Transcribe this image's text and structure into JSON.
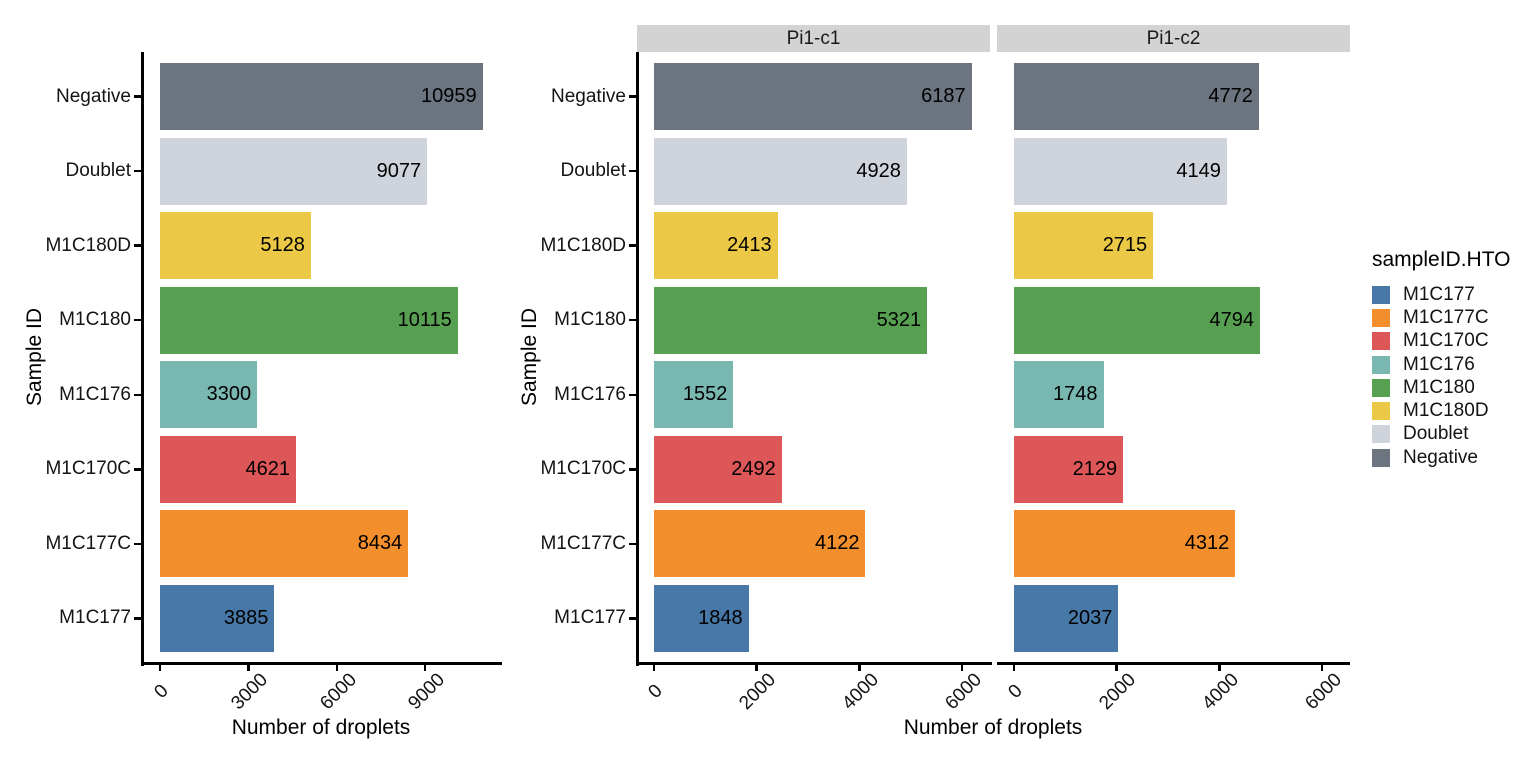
{
  "chart_data": {
    "type": "bar",
    "orientation": "horizontal",
    "xlabel": "Number of droplets",
    "ylabel": "Sample ID",
    "categories_top_to_bottom": [
      "Negative",
      "Doublet",
      "M1C180D",
      "M1C180",
      "M1C176",
      "M1C170C",
      "M1C177C",
      "M1C177"
    ],
    "bar_colors": {
      "Negative": "#6C757F",
      "Doublet": "#CFD4DC",
      "M1C180D": "#EBC845",
      "M1C180": "#57A052",
      "M1C176": "#79B7B1",
      "M1C170C": "#DD5658",
      "M1C177C": "#F28E2B",
      "M1C177": "#4878A7"
    },
    "panels": [
      {
        "facet_label": "",
        "values": [
          10959,
          9077,
          5128,
          10115,
          3300,
          4621,
          8434,
          3885
        ],
        "x_ticks": [
          0,
          3000,
          6000,
          9000
        ],
        "xlim": [
          -610,
          11550
        ]
      },
      {
        "facet_label": "Pi1-c1",
        "values": [
          6187,
          4928,
          2413,
          5321,
          1552,
          2492,
          4122,
          1848
        ],
        "x_ticks": [
          0,
          2000,
          4000,
          6000
        ],
        "xlim": [
          -325,
          6545
        ]
      },
      {
        "facet_label": "Pi1-c2",
        "values": [
          4772,
          4149,
          2715,
          4794,
          1748,
          2129,
          4312,
          2037
        ],
        "x_ticks": [
          0,
          2000,
          4000,
          6000
        ],
        "xlim": [
          -325,
          6545
        ]
      }
    ],
    "legend": {
      "title": "sampleID.HTO",
      "position": "right",
      "items": [
        {
          "label": "M1C177",
          "color": "#4878A7"
        },
        {
          "label": "M1C177C",
          "color": "#F28E2B"
        },
        {
          "label": "M1C170C",
          "color": "#DD5658"
        },
        {
          "label": "M1C176",
          "color": "#79B7B1"
        },
        {
          "label": "M1C180",
          "color": "#57A052"
        },
        {
          "label": "M1C180D",
          "color": "#EBC845"
        },
        {
          "label": "Doublet",
          "color": "#CFD4DC"
        },
        {
          "label": "Negative",
          "color": "#6C757F"
        }
      ]
    },
    "styles": {
      "strip_background": "#D3D3D3",
      "axis_color": "#000000",
      "value_label_color": "#000000"
    }
  }
}
